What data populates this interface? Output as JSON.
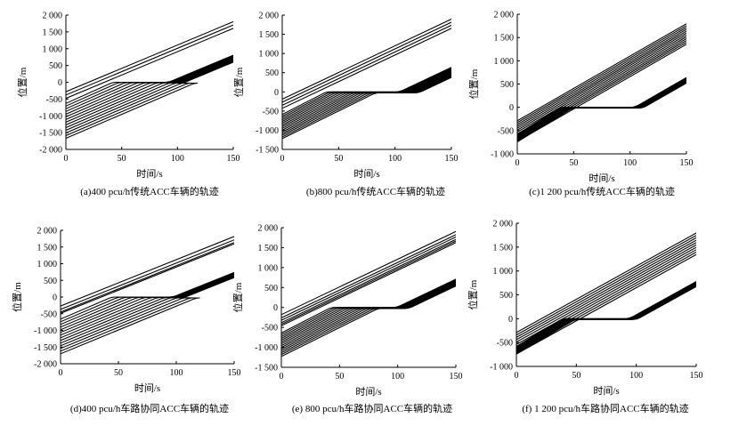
{
  "figure": {
    "xlabel": "时间/s",
    "ylabel": "位置/m"
  },
  "chart_data": [
    {
      "type": "line",
      "caption": "(a)400 pcu/h传统ACC车辆的轨迹",
      "xlabel": "时间/s",
      "ylabel": "位置/m",
      "xlim": [
        0,
        150
      ],
      "ylim": [
        -2000,
        2000
      ],
      "xticks": [
        "0",
        "50",
        "100",
        "150"
      ],
      "yticks": [
        "2 000",
        "1 500",
        "1 000",
        "500",
        "0",
        "-500",
        "-1 000",
        "-1 500",
        "-2 000"
      ],
      "ytick_values": [
        2000,
        1500,
        1000,
        500,
        0,
        -500,
        -1000,
        -1500,
        -2000
      ],
      "free_vehicles": {
        "count": 3,
        "speed_mps": 13.9,
        "start_positions_m": [
          -280,
          -380,
          -480
        ]
      },
      "queued_vehicles": {
        "count": 14,
        "speed_mps": 13.9,
        "first_start_m": -630,
        "spacing_m": 80,
        "stop_position_m": 0,
        "first_stop_s": 42,
        "release_s": 88,
        "release_stagger_s": 1.0
      }
    },
    {
      "type": "line",
      "caption": "(b)800 pcu/h传统ACC车辆的轨迹",
      "xlabel": "时间/s",
      "ylabel": "位置/m",
      "xlim": [
        0,
        150
      ],
      "ylim": [
        -1500,
        2000
      ],
      "xticks": [
        "0",
        "50",
        "100",
        "150"
      ],
      "yticks": [
        "2 000",
        "1 500",
        "1 000",
        "500",
        "0",
        "-500",
        "-1 000",
        "-1 500"
      ],
      "ytick_values": [
        2000,
        1500,
        1000,
        500,
        0,
        -500,
        -1000,
        -1500
      ],
      "free_vehicles": {
        "count": 4,
        "speed_mps": 13.9,
        "start_positions_m": [
          -190,
          -270,
          -350,
          -430
        ]
      },
      "queued_vehicles": {
        "count": 15,
        "speed_mps": 13.9,
        "first_start_m": -590,
        "spacing_m": 45,
        "stop_position_m": 0,
        "first_stop_s": 42,
        "release_s": 100,
        "release_stagger_s": 1.2
      }
    },
    {
      "type": "line",
      "caption": "(c)1 200 pcu/h传统ACC车辆的轨迹",
      "xlabel": "时间/s",
      "ylabel": "位置/m",
      "xlim": [
        0,
        150
      ],
      "ylim": [
        -1000,
        2000
      ],
      "xticks": [
        "0",
        "50",
        "100",
        "150"
      ],
      "yticks": [
        "2 000",
        "1 500",
        "1 000",
        "500",
        "0",
        "-500",
        "-1 000"
      ],
      "ytick_values": [
        2000,
        1500,
        1000,
        500,
        0,
        -500,
        -1000
      ],
      "free_vehicles": {
        "count": 12,
        "speed_mps": 13.9,
        "start_positions_m": [
          -290,
          -330,
          -370,
          -410,
          -450,
          -490,
          -530,
          -570,
          -610,
          -650,
          -690,
          -730
        ]
      },
      "queued_vehicles": {
        "count": 10,
        "speed_mps": 13.9,
        "first_start_m": -580,
        "spacing_m": 18,
        "stop_position_m": 0,
        "first_stop_s": 42,
        "release_s": 100,
        "release_stagger_s": 0.8
      }
    },
    {
      "type": "line",
      "caption": "(d)400 pcu/h车路协同ACC车辆的轨迹",
      "xlabel": "时间/s",
      "ylabel": "位置/m",
      "xlim": [
        0,
        150
      ],
      "ylim": [
        -2000,
        2000
      ],
      "xticks": [
        "0",
        "50",
        "100",
        "150"
      ],
      "yticks": [
        "2 000",
        "1 500",
        "1 000",
        "500",
        "0",
        "-500",
        "-1 000",
        "-1 500",
        "-2 000"
      ],
      "ytick_values": [
        2000,
        1500,
        1000,
        500,
        0,
        -500,
        -1000,
        -1500,
        -2000
      ],
      "free_vehicles": {
        "count": 4,
        "speed_mps": 13.9,
        "start_positions_m": [
          -270,
          -370,
          -450,
          -490
        ]
      },
      "queued_vehicles": {
        "count": 14,
        "speed_mps": 13.9,
        "first_start_m": -660,
        "spacing_m": 80,
        "stop_position_m": 0,
        "first_stop_s": 42,
        "release_s": 93,
        "release_stagger_s": 0.7
      }
    },
    {
      "type": "line",
      "caption": "(e)  800 pcu/h车路协同ACC车辆的轨迹",
      "xlabel": "时间/s",
      "ylabel": "位置/m",
      "xlim": [
        0,
        150
      ],
      "ylim": [
        -1500,
        2000
      ],
      "xticks": [
        "0",
        "50",
        "100",
        "150"
      ],
      "yticks": [
        "2 000",
        "1 500",
        "1 000",
        "500",
        "0",
        "-500",
        "-1 000",
        "-1 500"
      ],
      "ytick_values": [
        2000,
        1500,
        1000,
        500,
        0,
        -500,
        -1000,
        -1500
      ],
      "free_vehicles": {
        "count": 6,
        "speed_mps": 13.9,
        "start_positions_m": [
          -180,
          -260,
          -320,
          -380,
          -420,
          -460
        ]
      },
      "queued_vehicles": {
        "count": 14,
        "speed_mps": 13.9,
        "first_start_m": -640,
        "spacing_m": 45,
        "stop_position_m": 0,
        "first_stop_s": 42,
        "release_s": 95,
        "release_stagger_s": 0.8
      }
    },
    {
      "type": "line",
      "caption": "(f) 1 200 pcu/h车路协同ACC车辆的轨迹",
      "xlabel": "时间/s",
      "ylabel": "位置/m",
      "xlim": [
        0,
        150
      ],
      "ylim": [
        -1000,
        2000
      ],
      "xticks": [
        "0",
        "50",
        "100",
        "150"
      ],
      "yticks": [
        "2 000",
        "1 500",
        "1 000",
        "500",
        "0",
        "-500",
        "-1 000"
      ],
      "ytick_values": [
        2000,
        1500,
        1000,
        500,
        0,
        -500,
        -1000
      ],
      "free_vehicles": {
        "count": 10,
        "speed_mps": 13.9,
        "start_positions_m": [
          -290,
          -340,
          -390,
          -440,
          -490,
          -540,
          -590,
          -640,
          -690,
          -740
        ]
      },
      "queued_vehicles": {
        "count": 10,
        "speed_mps": 13.9,
        "first_start_m": -580,
        "spacing_m": 18,
        "stop_position_m": 0,
        "first_stop_s": 42,
        "release_s": 90,
        "release_stagger_s": 0.7
      }
    }
  ]
}
